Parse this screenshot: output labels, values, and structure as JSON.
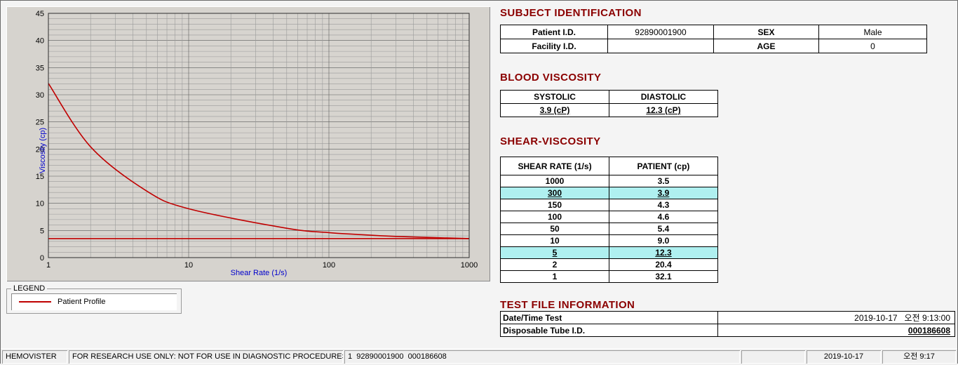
{
  "colors": {
    "heading": "#8b0000",
    "table_header_bg": "#f48c8c",
    "highlight_row_bg": "#aff0f0",
    "curve_red": "#c00000",
    "axis_label_blue": "#0000cc"
  },
  "headings": {
    "subject": "SUBJECT IDENTIFICATION",
    "blood": "BLOOD VISCOSITY",
    "shear": "SHEAR-VISCOSITY",
    "test_file": "TEST FILE INFORMATION"
  },
  "subject": {
    "patient_id_label": "Patient I.D.",
    "patient_id": "92890001900",
    "sex_label": "SEX",
    "sex": "Male",
    "facility_id_label": "Facility I.D.",
    "facility_id": "",
    "age_label": "AGE",
    "age": "0"
  },
  "blood_viscosity": {
    "systolic_label": "SYSTOLIC",
    "diastolic_label": "DIASTOLIC",
    "systolic_value": "3.9 (cP)",
    "diastolic_value": "12.3 (cP)"
  },
  "shear_viscosity": {
    "col_shear_rate": "SHEAR RATE (1/s)",
    "col_patient": "PATIENT (cp)",
    "rows": [
      {
        "rate": "1000",
        "value": "3.5",
        "highlight": false
      },
      {
        "rate": "300",
        "value": "3.9",
        "highlight": true
      },
      {
        "rate": "150",
        "value": "4.3",
        "highlight": false
      },
      {
        "rate": "100",
        "value": "4.6",
        "highlight": false
      },
      {
        "rate": "50",
        "value": "5.4",
        "highlight": false
      },
      {
        "rate": "10",
        "value": "9.0",
        "highlight": false
      },
      {
        "rate": "5",
        "value": "12.3",
        "highlight": true
      },
      {
        "rate": "2",
        "value": "20.4",
        "highlight": false
      },
      {
        "rate": "1",
        "value": "32.1",
        "highlight": false
      }
    ]
  },
  "test_file": {
    "rows": [
      {
        "label": "Date/Time Test",
        "value": "2019-10-17   오전 9:13:00",
        "emphasis": false
      },
      {
        "label": "Disposable Tube I.D.",
        "value": "000186608",
        "emphasis": true
      }
    ]
  },
  "legend": {
    "title": "LEGEND",
    "series_label": "Patient Profile"
  },
  "chart_data": {
    "type": "line",
    "title": "",
    "xlabel": "Shear Rate (1/s)",
    "ylabel": "Viscosity (cp)",
    "x_scale": "log",
    "xlim": [
      1,
      1000
    ],
    "ylim": [
      0,
      45
    ],
    "x_ticks": [
      1,
      10,
      100,
      1000
    ],
    "y_ticks": [
      0,
      5,
      10,
      15,
      20,
      25,
      30,
      35,
      40,
      45
    ],
    "grid": "dense: minor y every 1, log minor x each decade",
    "legend_position": "boxed, below chart",
    "series": [
      {
        "name": "Patient Profile",
        "color": "#c00000",
        "x": [
          1,
          2,
          5,
          10,
          50,
          100,
          150,
          300,
          1000
        ],
        "y": [
          32.1,
          20.4,
          12.3,
          9.0,
          5.4,
          4.6,
          4.3,
          3.9,
          3.5
        ]
      },
      {
        "name": "flat-baseline-line",
        "color": "#c00000",
        "x": [
          1,
          1000
        ],
        "y": [
          3.5,
          3.5
        ]
      }
    ]
  },
  "statusbar": {
    "app": "HEMOVISTER",
    "notice": "FOR RESEARCH USE ONLY: NOT FOR USE IN DIAGNOSTIC PROCEDURES",
    "record": "1  92890001900  000186608",
    "date": "2019-10-17",
    "time": "오전 9:17"
  }
}
